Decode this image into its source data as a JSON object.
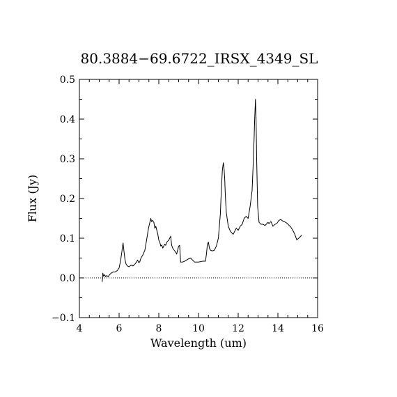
{
  "chart_data": {
    "type": "line",
    "title": "80.3884−69.6722_IRSX_4349_SL",
    "xlabel": "Wavelength (um)",
    "ylabel": "Flux (Jy)",
    "xlim": [
      4,
      16
    ],
    "ylim": [
      -0.1,
      0.5
    ],
    "xticks": [
      4,
      6,
      8,
      10,
      12,
      14,
      16
    ],
    "xtick_labels": [
      "4",
      "6",
      "8",
      "10",
      "12",
      "14",
      "16"
    ],
    "yticks": [
      -0.1,
      0.0,
      0.1,
      0.2,
      0.3,
      0.4,
      0.5
    ],
    "ytick_labels": [
      "−0.1",
      "0.0",
      "0.1",
      "0.2",
      "0.3",
      "0.4",
      "0.5"
    ],
    "grid": false,
    "reference_line": {
      "y": 0.0,
      "style": "dotted"
    },
    "series": [
      {
        "color": "#000000",
        "x": [
          5.15,
          5.18,
          5.22,
          5.27,
          5.32,
          5.38,
          5.45,
          5.52,
          5.6,
          5.7,
          5.8,
          5.9,
          6.0,
          6.08,
          6.15,
          6.2,
          6.25,
          6.3,
          6.35,
          6.42,
          6.5,
          6.6,
          6.7,
          6.8,
          6.88,
          6.93,
          7.0,
          7.05,
          7.1,
          7.2,
          7.3,
          7.4,
          7.48,
          7.55,
          7.6,
          7.63,
          7.68,
          7.75,
          7.8,
          7.85,
          7.9,
          7.95,
          8.0,
          8.05,
          8.1,
          8.15,
          8.2,
          8.25,
          8.3,
          8.35,
          8.4,
          8.5,
          8.55,
          8.6,
          8.62,
          8.65,
          8.7,
          8.8,
          8.85,
          8.9,
          8.95,
          9.0,
          9.05,
          9.1,
          9.2,
          9.3,
          9.4,
          9.5,
          9.6,
          9.7,
          9.8,
          10.0,
          10.2,
          10.35,
          10.4,
          10.45,
          10.5,
          10.55,
          10.6,
          10.7,
          10.8,
          10.9,
          11.0,
          11.1,
          11.15,
          11.2,
          11.25,
          11.28,
          11.32,
          11.35,
          11.4,
          11.5,
          11.6,
          11.7,
          11.75,
          11.8,
          11.9,
          12.0,
          12.1,
          12.2,
          12.3,
          12.4,
          12.5,
          12.6,
          12.7,
          12.75,
          12.8,
          12.83,
          12.87,
          12.9,
          12.93,
          12.98,
          13.05,
          13.15,
          13.25,
          13.35,
          13.45,
          13.5,
          13.55,
          13.65,
          13.75,
          13.85,
          13.95,
          14.05,
          14.15,
          14.25,
          14.35,
          14.45,
          14.55,
          14.65,
          14.75,
          14.85,
          14.95,
          15.05,
          15.15,
          15.2
        ],
        "y": [
          -0.01,
          0.012,
          0.004,
          0.008,
          0.003,
          0.006,
          0.003,
          0.008,
          0.012,
          0.015,
          0.015,
          0.018,
          0.025,
          0.045,
          0.07,
          0.088,
          0.065,
          0.045,
          0.035,
          0.03,
          0.028,
          0.032,
          0.03,
          0.035,
          0.04,
          0.045,
          0.038,
          0.042,
          0.05,
          0.058,
          0.07,
          0.1,
          0.125,
          0.14,
          0.15,
          0.142,
          0.145,
          0.14,
          0.125,
          0.13,
          0.12,
          0.11,
          0.095,
          0.09,
          0.08,
          0.083,
          0.075,
          0.08,
          0.085,
          0.082,
          0.09,
          0.095,
          0.1,
          0.105,
          0.095,
          0.082,
          0.075,
          0.068,
          0.065,
          0.06,
          0.07,
          0.08,
          0.082,
          0.04,
          0.04,
          0.042,
          0.045,
          0.048,
          0.05,
          0.045,
          0.04,
          0.04,
          0.042,
          0.042,
          0.06,
          0.085,
          0.09,
          0.075,
          0.07,
          0.068,
          0.07,
          0.08,
          0.1,
          0.16,
          0.22,
          0.27,
          0.29,
          0.28,
          0.25,
          0.21,
          0.165,
          0.13,
          0.118,
          0.112,
          0.11,
          0.115,
          0.125,
          0.12,
          0.13,
          0.135,
          0.15,
          0.155,
          0.15,
          0.18,
          0.22,
          0.28,
          0.35,
          0.4,
          0.45,
          0.4,
          0.3,
          0.18,
          0.14,
          0.135,
          0.135,
          0.132,
          0.137,
          0.14,
          0.137,
          0.142,
          0.13,
          0.135,
          0.137,
          0.145,
          0.147,
          0.143,
          0.141,
          0.138,
          0.133,
          0.128,
          0.12,
          0.11,
          0.096,
          0.1,
          0.105,
          0.108
        ]
      }
    ]
  }
}
